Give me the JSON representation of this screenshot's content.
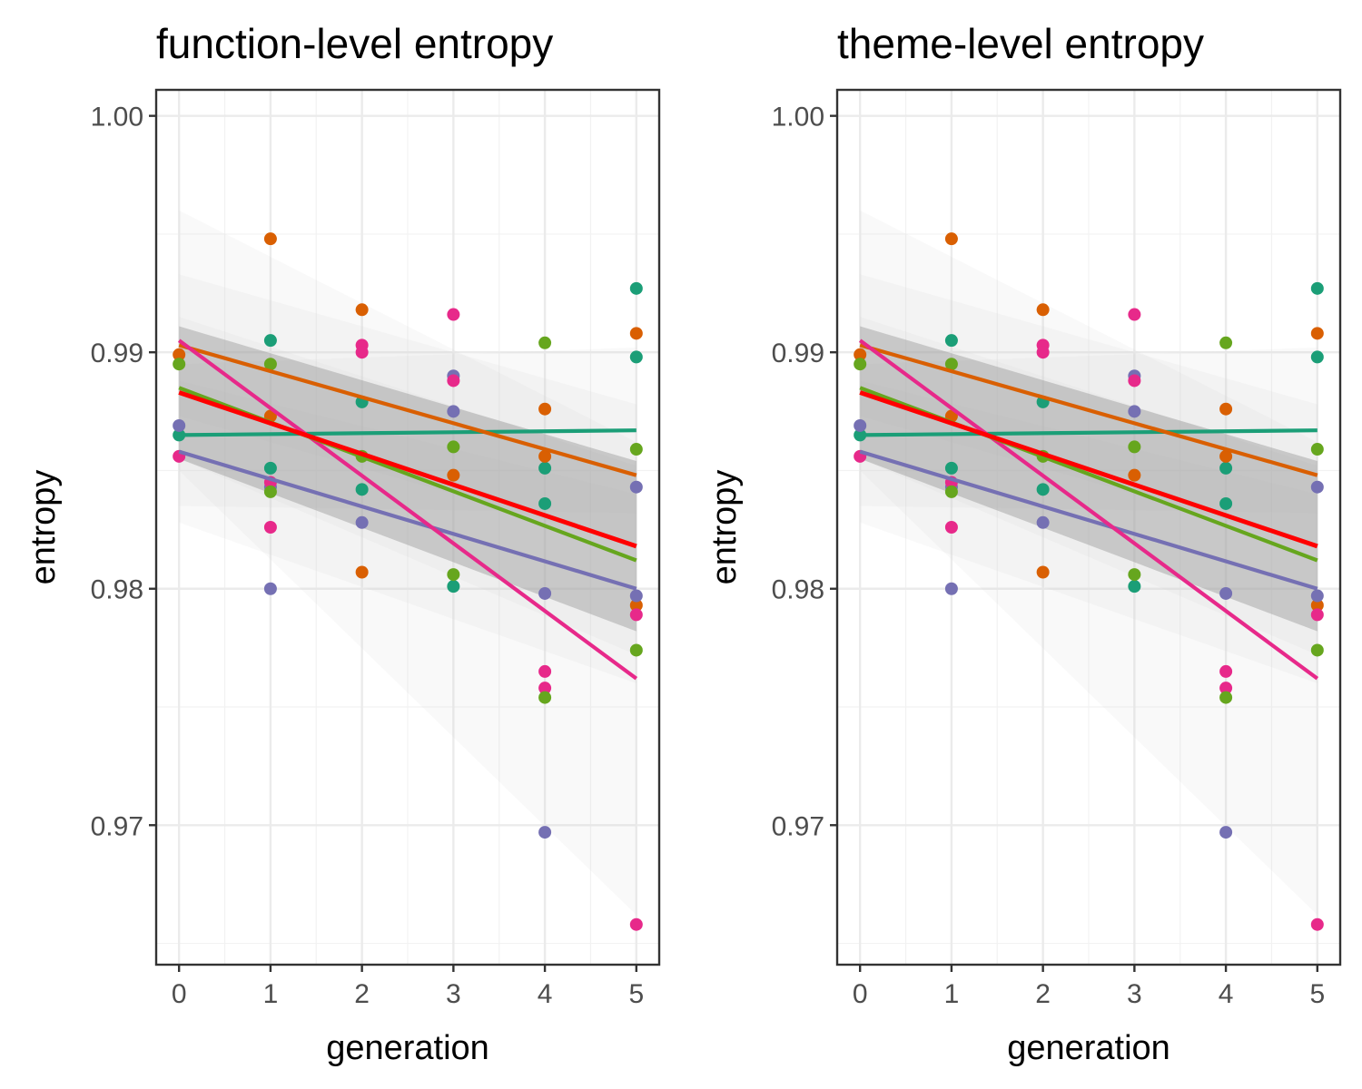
{
  "chart_data": [
    {
      "type": "scatter",
      "title": "function-level entropy",
      "xlabel": "generation",
      "ylabel": "entropy",
      "xlim": [
        -0.25,
        5.25
      ],
      "ylim": [
        0.9641,
        1.0011
      ],
      "x_ticks": [
        "0",
        "1",
        "2",
        "3",
        "4",
        "5"
      ],
      "y_ticks": [
        "0.97",
        "0.98",
        "0.99",
        "1.00"
      ],
      "grid": true,
      "legend": "none",
      "series": [
        {
          "color": "#1B9E77",
          "points": [
            [
              0,
              0.9865
            ],
            [
              1,
              0.9905
            ],
            [
              1,
              0.9851
            ],
            [
              2,
              0.9879
            ],
            [
              2,
              0.9842
            ],
            [
              3,
              0.9801
            ],
            [
              4,
              0.9851
            ],
            [
              4,
              0.9836
            ],
            [
              5,
              0.9927
            ],
            [
              5,
              0.9898
            ]
          ],
          "fit": [
            0.9865,
            0.9867
          ],
          "band": [
            0.003,
            0.0035
          ]
        },
        {
          "color": "#D95F02",
          "points": [
            [
              0,
              0.9899
            ],
            [
              1,
              0.9948
            ],
            [
              1,
              0.9873
            ],
            [
              2,
              0.9918
            ],
            [
              2,
              0.9807
            ],
            [
              3,
              0.9848
            ],
            [
              4,
              0.9876
            ],
            [
              4,
              0.9856
            ],
            [
              5,
              0.9908
            ],
            [
              5,
              0.9793
            ]
          ],
          "fit": [
            0.9903,
            0.9848
          ],
          "band": [
            0.003,
            0.003
          ]
        },
        {
          "color": "#7570B3",
          "points": [
            [
              0,
              0.9869
            ],
            [
              1,
              0.98
            ],
            [
              1,
              0.9843
            ],
            [
              2,
              0.9828
            ],
            [
              3,
              0.989
            ],
            [
              3,
              0.9875
            ],
            [
              4,
              0.9798
            ],
            [
              4,
              0.9697
            ],
            [
              5,
              0.9843
            ],
            [
              5,
              0.9797
            ]
          ],
          "fit": [
            0.9858,
            0.98
          ],
          "band": [
            0.003,
            0.004
          ]
        },
        {
          "color": "#E7298A",
          "points": [
            [
              0,
              0.9856
            ],
            [
              1,
              0.9826
            ],
            [
              1,
              0.9845
            ],
            [
              2,
              0.9903
            ],
            [
              2,
              0.99
            ],
            [
              3,
              0.9916
            ],
            [
              3,
              0.9888
            ],
            [
              4,
              0.9765
            ],
            [
              4,
              0.9758
            ],
            [
              5,
              0.9789
            ],
            [
              5,
              0.9658
            ]
          ],
          "fit": [
            0.9905,
            0.9762
          ],
          "band": [
            0.0055,
            0.01
          ]
        },
        {
          "color": "#66A61E",
          "points": [
            [
              0,
              0.9895
            ],
            [
              1,
              0.9895
            ],
            [
              1,
              0.9841
            ],
            [
              2,
              0.9856
            ],
            [
              3,
              0.986
            ],
            [
              3,
              0.9806
            ],
            [
              4,
              0.9904
            ],
            [
              4,
              0.9754
            ],
            [
              5,
              0.9859
            ],
            [
              5,
              0.9774
            ]
          ],
          "fit": [
            0.9885,
            0.9812
          ],
          "band": [
            0.003,
            0.004
          ]
        },
        {
          "color": "#FF0000",
          "points": [],
          "fit": [
            0.9883,
            0.9818
          ],
          "band": [
            0.0028,
            0.0036
          ],
          "band_highlight": true
        }
      ]
    },
    {
      "type": "scatter",
      "title": "theme-level entropy",
      "xlabel": "generation",
      "ylabel": "entropy",
      "xlim": [
        -0.25,
        5.25
      ],
      "ylim": [
        0.9641,
        1.0011
      ],
      "x_ticks": [
        "0",
        "1",
        "2",
        "3",
        "4",
        "5"
      ],
      "y_ticks": [
        "0.97",
        "0.98",
        "0.99",
        "1.00"
      ],
      "grid": true,
      "legend": "none",
      "series": [
        {
          "color": "#1B9E77",
          "points": [
            [
              0,
              0.9865
            ],
            [
              1,
              0.9905
            ],
            [
              1,
              0.9851
            ],
            [
              2,
              0.9879
            ],
            [
              2,
              0.9842
            ],
            [
              3,
              0.9801
            ],
            [
              4,
              0.9851
            ],
            [
              4,
              0.9836
            ],
            [
              5,
              0.9927
            ],
            [
              5,
              0.9898
            ]
          ],
          "fit": [
            0.9865,
            0.9867
          ],
          "band": [
            0.003,
            0.0035
          ]
        },
        {
          "color": "#D95F02",
          "points": [
            [
              0,
              0.9899
            ],
            [
              1,
              0.9948
            ],
            [
              1,
              0.9873
            ],
            [
              2,
              0.9918
            ],
            [
              2,
              0.9807
            ],
            [
              3,
              0.9848
            ],
            [
              4,
              0.9876
            ],
            [
              4,
              0.9856
            ],
            [
              5,
              0.9908
            ],
            [
              5,
              0.9793
            ]
          ],
          "fit": [
            0.9903,
            0.9848
          ],
          "band": [
            0.003,
            0.003
          ]
        },
        {
          "color": "#7570B3",
          "points": [
            [
              0,
              0.9869
            ],
            [
              1,
              0.98
            ],
            [
              1,
              0.9843
            ],
            [
              2,
              0.9828
            ],
            [
              3,
              0.989
            ],
            [
              3,
              0.9875
            ],
            [
              4,
              0.9798
            ],
            [
              4,
              0.9697
            ],
            [
              5,
              0.9843
            ],
            [
              5,
              0.9797
            ]
          ],
          "fit": [
            0.9858,
            0.98
          ],
          "band": [
            0.003,
            0.004
          ]
        },
        {
          "color": "#E7298A",
          "points": [
            [
              0,
              0.9856
            ],
            [
              1,
              0.9826
            ],
            [
              1,
              0.9845
            ],
            [
              2,
              0.9903
            ],
            [
              2,
              0.99
            ],
            [
              3,
              0.9916
            ],
            [
              3,
              0.9888
            ],
            [
              4,
              0.9765
            ],
            [
              4,
              0.9758
            ],
            [
              5,
              0.9789
            ],
            [
              5,
              0.9658
            ]
          ],
          "fit": [
            0.9905,
            0.9762
          ],
          "band": [
            0.0055,
            0.01
          ]
        },
        {
          "color": "#66A61E",
          "points": [
            [
              0,
              0.9895
            ],
            [
              1,
              0.9895
            ],
            [
              1,
              0.9841
            ],
            [
              2,
              0.9856
            ],
            [
              3,
              0.986
            ],
            [
              3,
              0.9806
            ],
            [
              4,
              0.9904
            ],
            [
              4,
              0.9754
            ],
            [
              5,
              0.9859
            ],
            [
              5,
              0.9774
            ]
          ],
          "fit": [
            0.9885,
            0.9812
          ],
          "band": [
            0.003,
            0.004
          ]
        },
        {
          "color": "#FF0000",
          "points": [],
          "fit": [
            0.9883,
            0.9818
          ],
          "band": [
            0.0028,
            0.0036
          ],
          "band_highlight": true
        }
      ]
    }
  ]
}
